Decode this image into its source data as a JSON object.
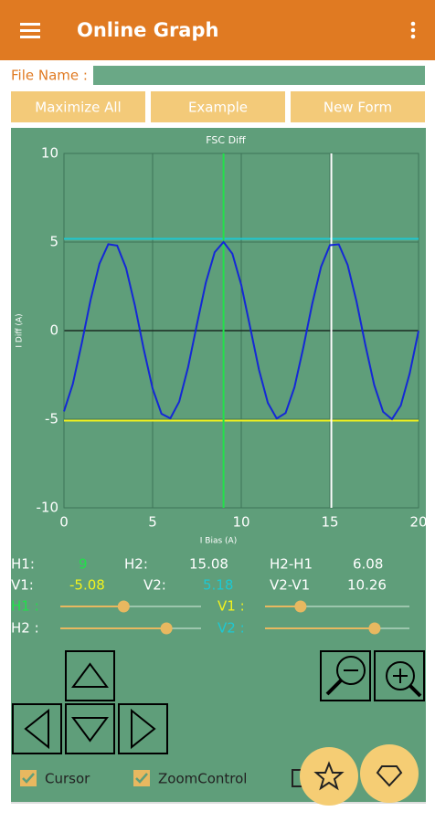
{
  "app_bar": {
    "title": "Online Graph"
  },
  "file_name_label": "File Name :",
  "buttons": [
    "Maximize All",
    "Example",
    "New Form"
  ],
  "chart_data": {
    "type": "line",
    "title": "FSC Diff",
    "x_label": "I Bias (A)",
    "y_label": "I Diff (A)",
    "xlim": [
      0,
      20
    ],
    "ylim": [
      -10,
      10
    ],
    "xticks": [
      0,
      5,
      10,
      15,
      20
    ],
    "yticks": [
      -10,
      -5,
      0,
      5,
      10
    ],
    "grid": true,
    "x": [
      0,
      0.5,
      1,
      1.5,
      2,
      2.5,
      3,
      3.5,
      4,
      4.5,
      5,
      5.5,
      6,
      6.5,
      7,
      7.5,
      8,
      8.5,
      9,
      9.5,
      10,
      10.5,
      11,
      11.5,
      12,
      12.5,
      13,
      13.5,
      14,
      14.5,
      15,
      15.5,
      16,
      16.5,
      17,
      17.5,
      18,
      18.5,
      19,
      19.5,
      20
    ],
    "series": [
      {
        "color": "#1428d6",
        "values": [
          -4.56,
          -3.01,
          -0.73,
          1.73,
          3.77,
          4.88,
          4.8,
          3.54,
          1.42,
          -1.05,
          -3.27,
          -4.69,
          -4.95,
          -4.01,
          -2.07,
          0.35,
          2.7,
          4.42,
          5.0,
          4.34,
          2.58,
          0.2,
          -2.21,
          -4.08,
          -4.96,
          -4.65,
          -3.2,
          -0.96,
          1.5,
          3.6,
          4.82,
          4.87,
          3.71,
          1.65,
          -0.81,
          -3.07,
          -4.58,
          -5.0,
          -4.22,
          -2.42,
          -0.01
        ]
      }
    ]
  },
  "readout": {
    "h1": {
      "label": "H1:",
      "value": 9,
      "color": "#22e04a"
    },
    "h2": {
      "label": "H2:",
      "value": 15.08,
      "color": "#ffffff"
    },
    "h_diff": {
      "label": "H2-H1",
      "value": 6.08
    },
    "v1": {
      "label": "V1:",
      "value": -5.08,
      "color": "#f2f21e"
    },
    "v2": {
      "label": "V2:",
      "value": 5.18,
      "color": "#1ec8d2"
    },
    "v_diff": {
      "label": "V2-V1",
      "value": 10.26
    }
  },
  "sliders": [
    {
      "label": "H1 :"
    },
    {
      "label": "V1 :"
    },
    {
      "label": "H2 :"
    },
    {
      "label": "V2 :"
    }
  ],
  "checkboxes": [
    "Cursor",
    "ZoomControl"
  ]
}
